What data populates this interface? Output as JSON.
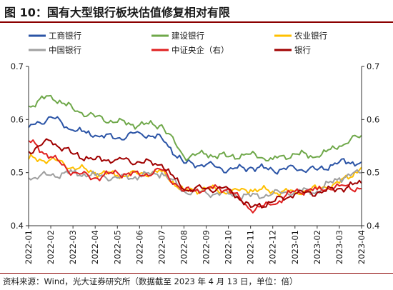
{
  "figure": {
    "title": "图 10：国有大型银行板块估值修复相对有限",
    "source": "资料来源：Wind，光大证券研究所（数据截至 2023 年 4 月 13 日，单位：倍）"
  },
  "colors": {
    "title_rule": "#8b0000",
    "axis": "#333333"
  },
  "chart_data": {
    "type": "line",
    "title": "",
    "x": [
      "2022-01",
      "2022-02",
      "2022-03",
      "2022-04",
      "2022-05",
      "2022-06",
      "2022-07",
      "2022-08",
      "2022-09",
      "2022-10",
      "2022-11",
      "2022-12",
      "2023-01",
      "2023-02",
      "2023-03",
      "2023-04"
    ],
    "y_left": {
      "label": "",
      "ylim": [
        0.4,
        0.7
      ],
      "ticks": [
        "0.4",
        "0.5",
        "0.6",
        "0.7"
      ]
    },
    "y_right": {
      "label": "",
      "ylim": [
        0.4,
        0.7
      ],
      "ticks": [
        "0.4",
        "0.5",
        "0.6",
        "0.7"
      ]
    },
    "legend_position": "top",
    "grid": false,
    "series": [
      {
        "name": "工商银行",
        "color": "#2b54a6",
        "axis": "left",
        "values": [
          0.585,
          0.605,
          0.58,
          0.57,
          0.565,
          0.575,
          0.565,
          0.518,
          0.515,
          0.505,
          0.51,
          0.505,
          0.508,
          0.505,
          0.52,
          0.52
        ]
      },
      {
        "name": "建设银行",
        "color": "#6fa84a",
        "axis": "left",
        "values": [
          0.625,
          0.645,
          0.62,
          0.605,
          0.595,
          0.59,
          0.59,
          0.53,
          0.535,
          0.53,
          0.535,
          0.525,
          0.535,
          0.53,
          0.55,
          0.57
        ]
      },
      {
        "name": "农业银行",
        "color": "#ffc000",
        "axis": "left",
        "values": [
          0.525,
          0.525,
          0.51,
          0.5,
          0.495,
          0.498,
          0.502,
          0.465,
          0.47,
          0.463,
          0.468,
          0.465,
          0.463,
          0.47,
          0.48,
          0.51
        ]
      },
      {
        "name": "中国银行",
        "color": "#a0a0a0",
        "axis": "left",
        "values": [
          0.49,
          0.495,
          0.5,
          0.495,
          0.49,
          0.493,
          0.5,
          0.465,
          0.462,
          0.46,
          0.455,
          0.46,
          0.465,
          0.465,
          0.49,
          0.5
        ]
      },
      {
        "name": "中证央企（右）",
        "color": "#e02020",
        "axis": "right",
        "values": [
          0.56,
          0.53,
          0.5,
          0.49,
          0.5,
          0.495,
          0.505,
          0.465,
          0.47,
          0.47,
          0.43,
          0.44,
          0.465,
          0.468,
          0.475,
          0.47
        ]
      },
      {
        "name": "银行",
        "color": "#a00000",
        "axis": "left",
        "values": [
          0.54,
          0.56,
          0.535,
          0.525,
          0.525,
          0.52,
          0.515,
          0.468,
          0.47,
          0.47,
          0.435,
          0.445,
          0.46,
          0.462,
          0.47,
          0.48
        ]
      }
    ]
  }
}
